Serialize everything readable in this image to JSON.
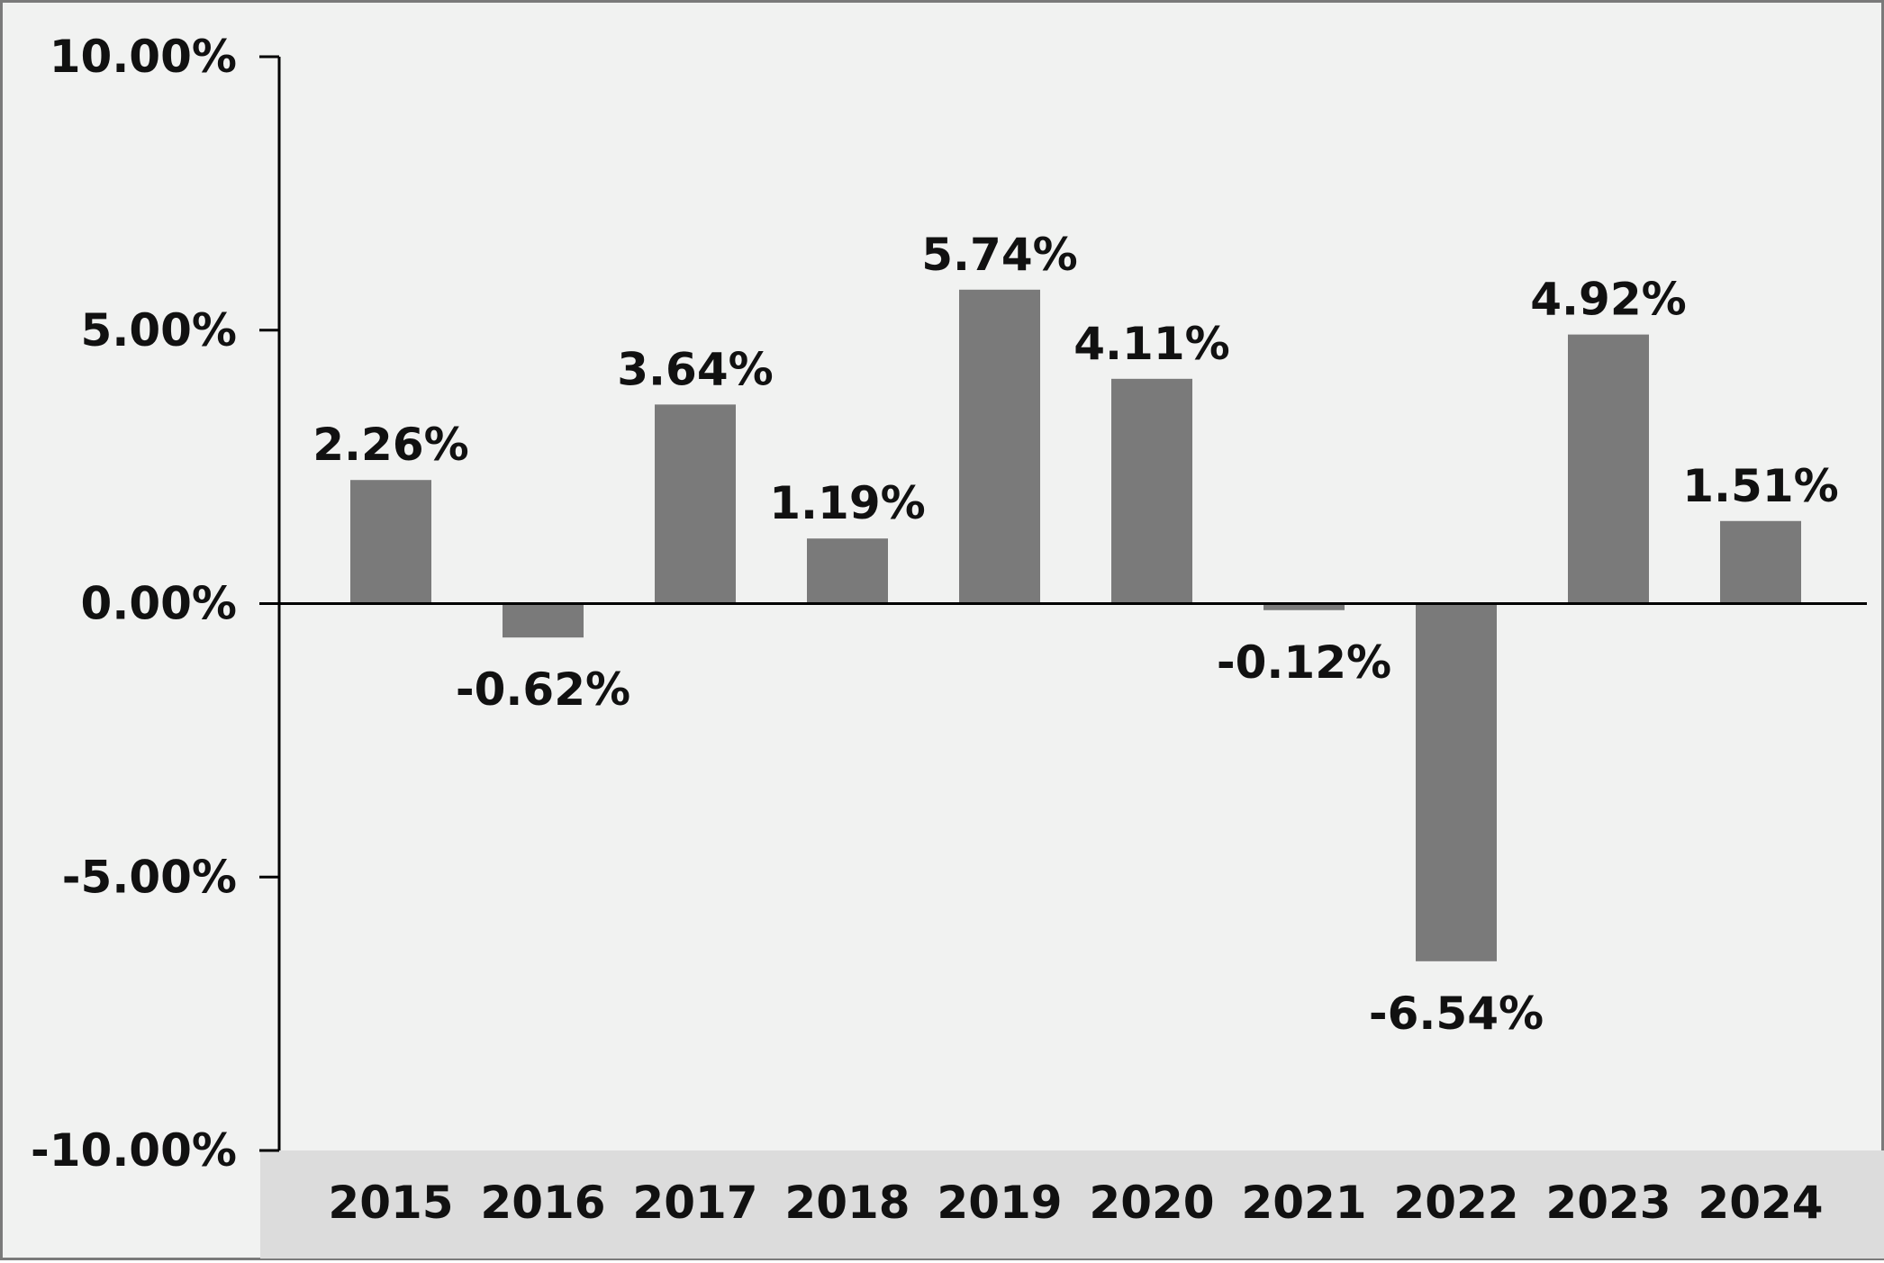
{
  "chart_data": {
    "type": "bar",
    "categories": [
      "2015",
      "2016",
      "2017",
      "2018",
      "2019",
      "2020",
      "2021",
      "2022",
      "2023",
      "2024"
    ],
    "values": [
      2.26,
      -0.62,
      3.64,
      1.19,
      5.74,
      4.11,
      -0.12,
      -6.54,
      4.92,
      1.51
    ],
    "value_labels": [
      "2.26%",
      "-0.62%",
      "3.64%",
      "1.19%",
      "5.74%",
      "4.11%",
      "-0.12%",
      "-6.54%",
      "4.92%",
      "1.51%"
    ],
    "y_ticks": [
      10,
      5,
      0,
      -5,
      -10
    ],
    "y_tick_labels": [
      "10.00%",
      "5.00%",
      "0.00%",
      "-5.00%",
      "-10.00%"
    ],
    "ylim": [
      -10,
      10
    ],
    "title": "",
    "xlabel": "",
    "ylabel": "",
    "grid": false,
    "legend": "none",
    "colors": {
      "bar": "#7a7a7a",
      "background": "#f1f2f1",
      "category_band": "#dcdcdc",
      "axis": "#000000",
      "frame": "#7a7a7a"
    }
  }
}
